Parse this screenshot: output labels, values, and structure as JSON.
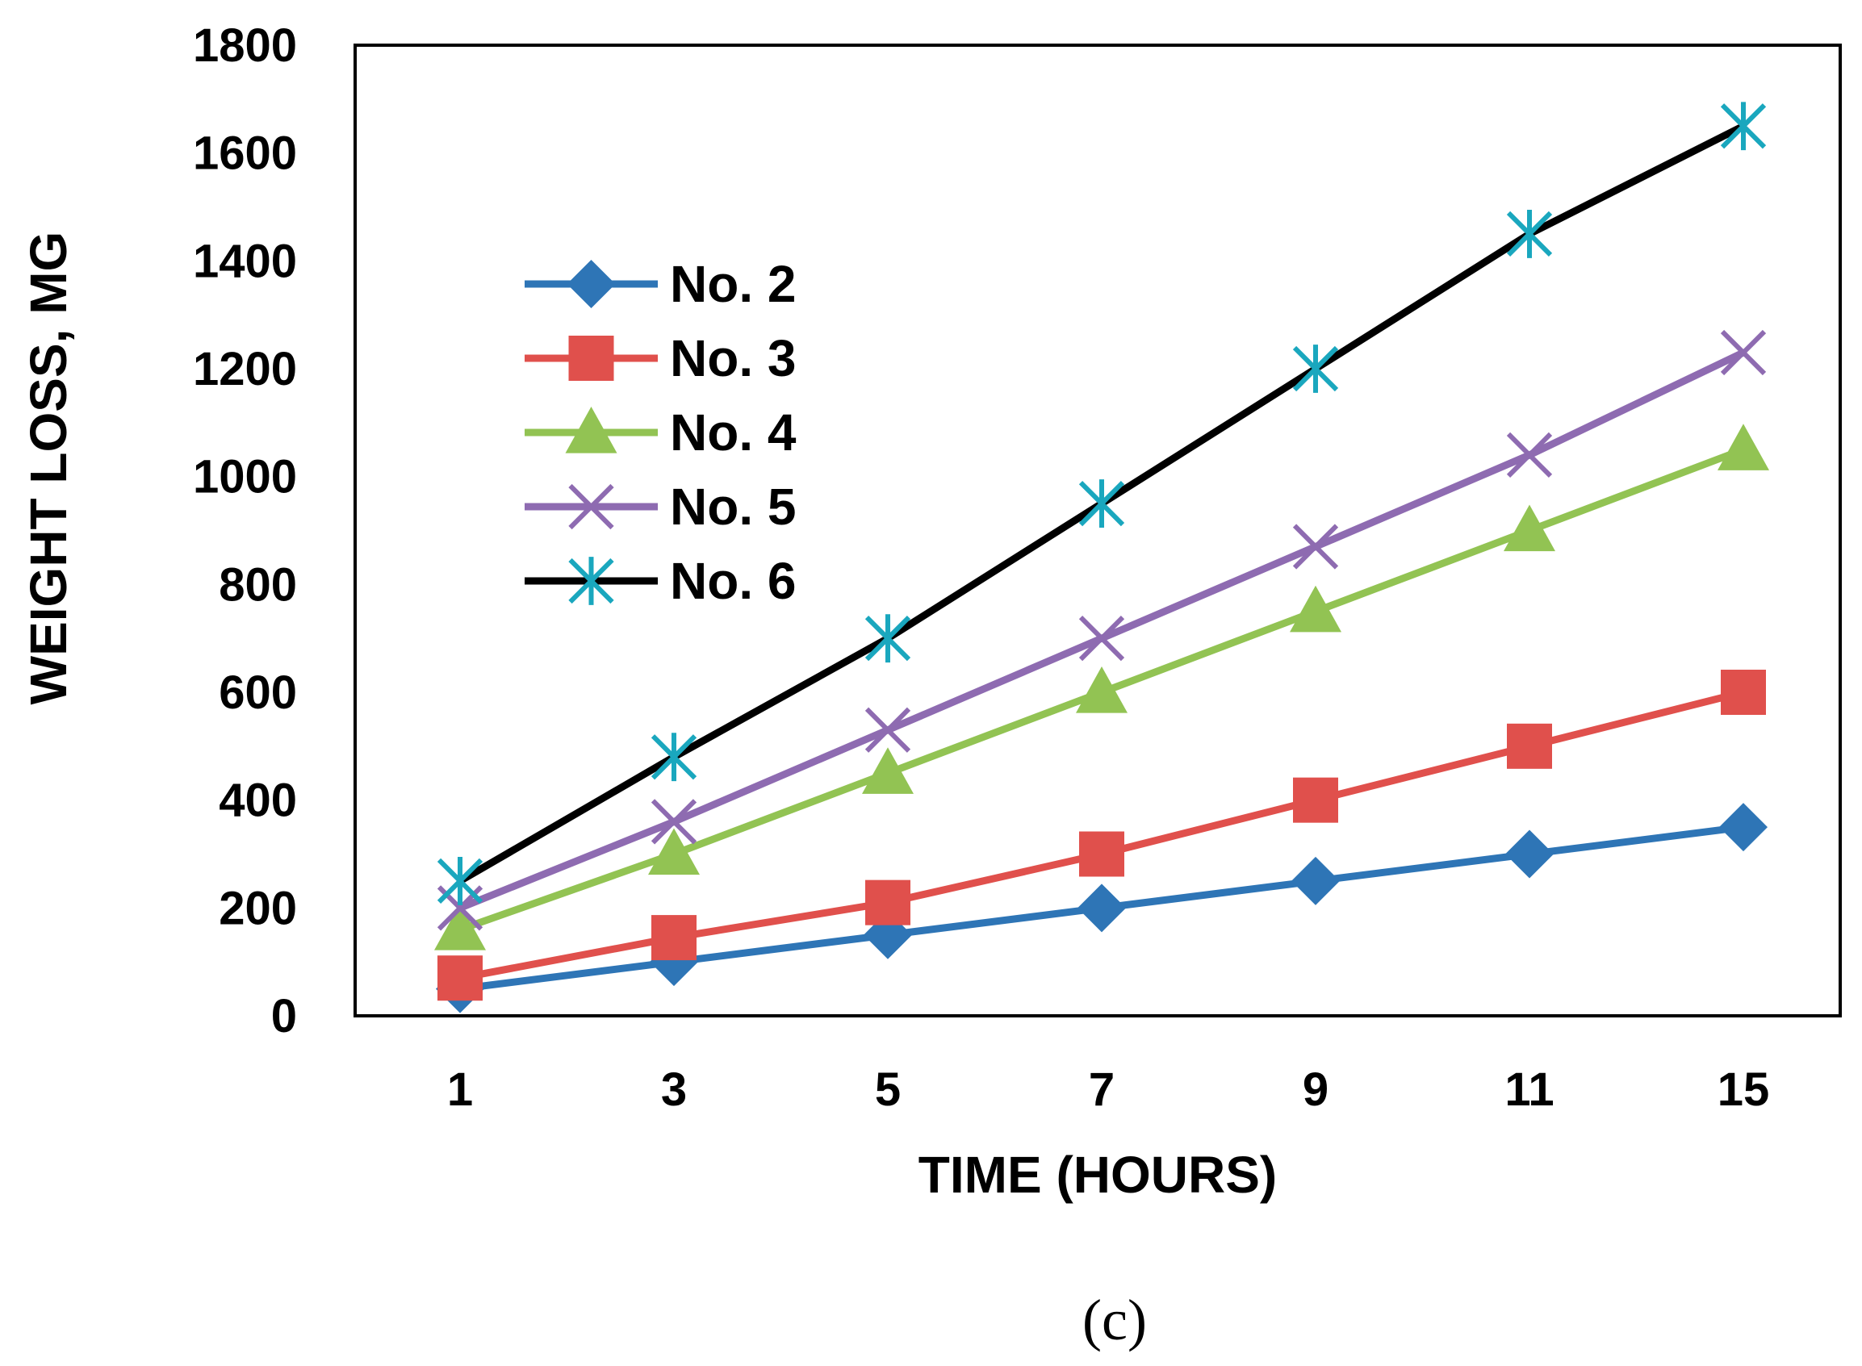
{
  "chart_data": {
    "type": "line",
    "categories": [
      "1",
      "3",
      "5",
      "7",
      "9",
      "11",
      "15"
    ],
    "xlabel": "TIME (HOURS)",
    "ylabel": "WEIGHT LOSS, MG",
    "ylim": [
      0,
      1800
    ],
    "yticks": [
      0,
      200,
      400,
      600,
      800,
      1000,
      1200,
      1400,
      1600,
      1800
    ],
    "grid": false,
    "legend_position": "upper-left",
    "series": [
      {
        "name": "No. 2",
        "color": "#2E75B6",
        "marker": "diamond",
        "values": [
          50,
          100,
          150,
          200,
          250,
          300,
          350
        ]
      },
      {
        "name": "No. 3",
        "color": "#E0504C",
        "marker": "square",
        "values": [
          70,
          145,
          210,
          300,
          400,
          500,
          600
        ]
      },
      {
        "name": "No. 4",
        "color": "#92C353",
        "marker": "triangle",
        "values": [
          160,
          300,
          450,
          600,
          750,
          900,
          1050
        ]
      },
      {
        "name": "No. 5",
        "color": "#8E6BB1",
        "marker": "x",
        "values": [
          200,
          360,
          530,
          700,
          870,
          1040,
          1230
        ]
      },
      {
        "name": "No. 6",
        "color": "#000000",
        "marker": "asterisk",
        "marker_color": "#1AA7BE",
        "values": [
          250,
          480,
          700,
          950,
          1200,
          1450,
          1650
        ]
      }
    ]
  },
  "caption": "(c)"
}
